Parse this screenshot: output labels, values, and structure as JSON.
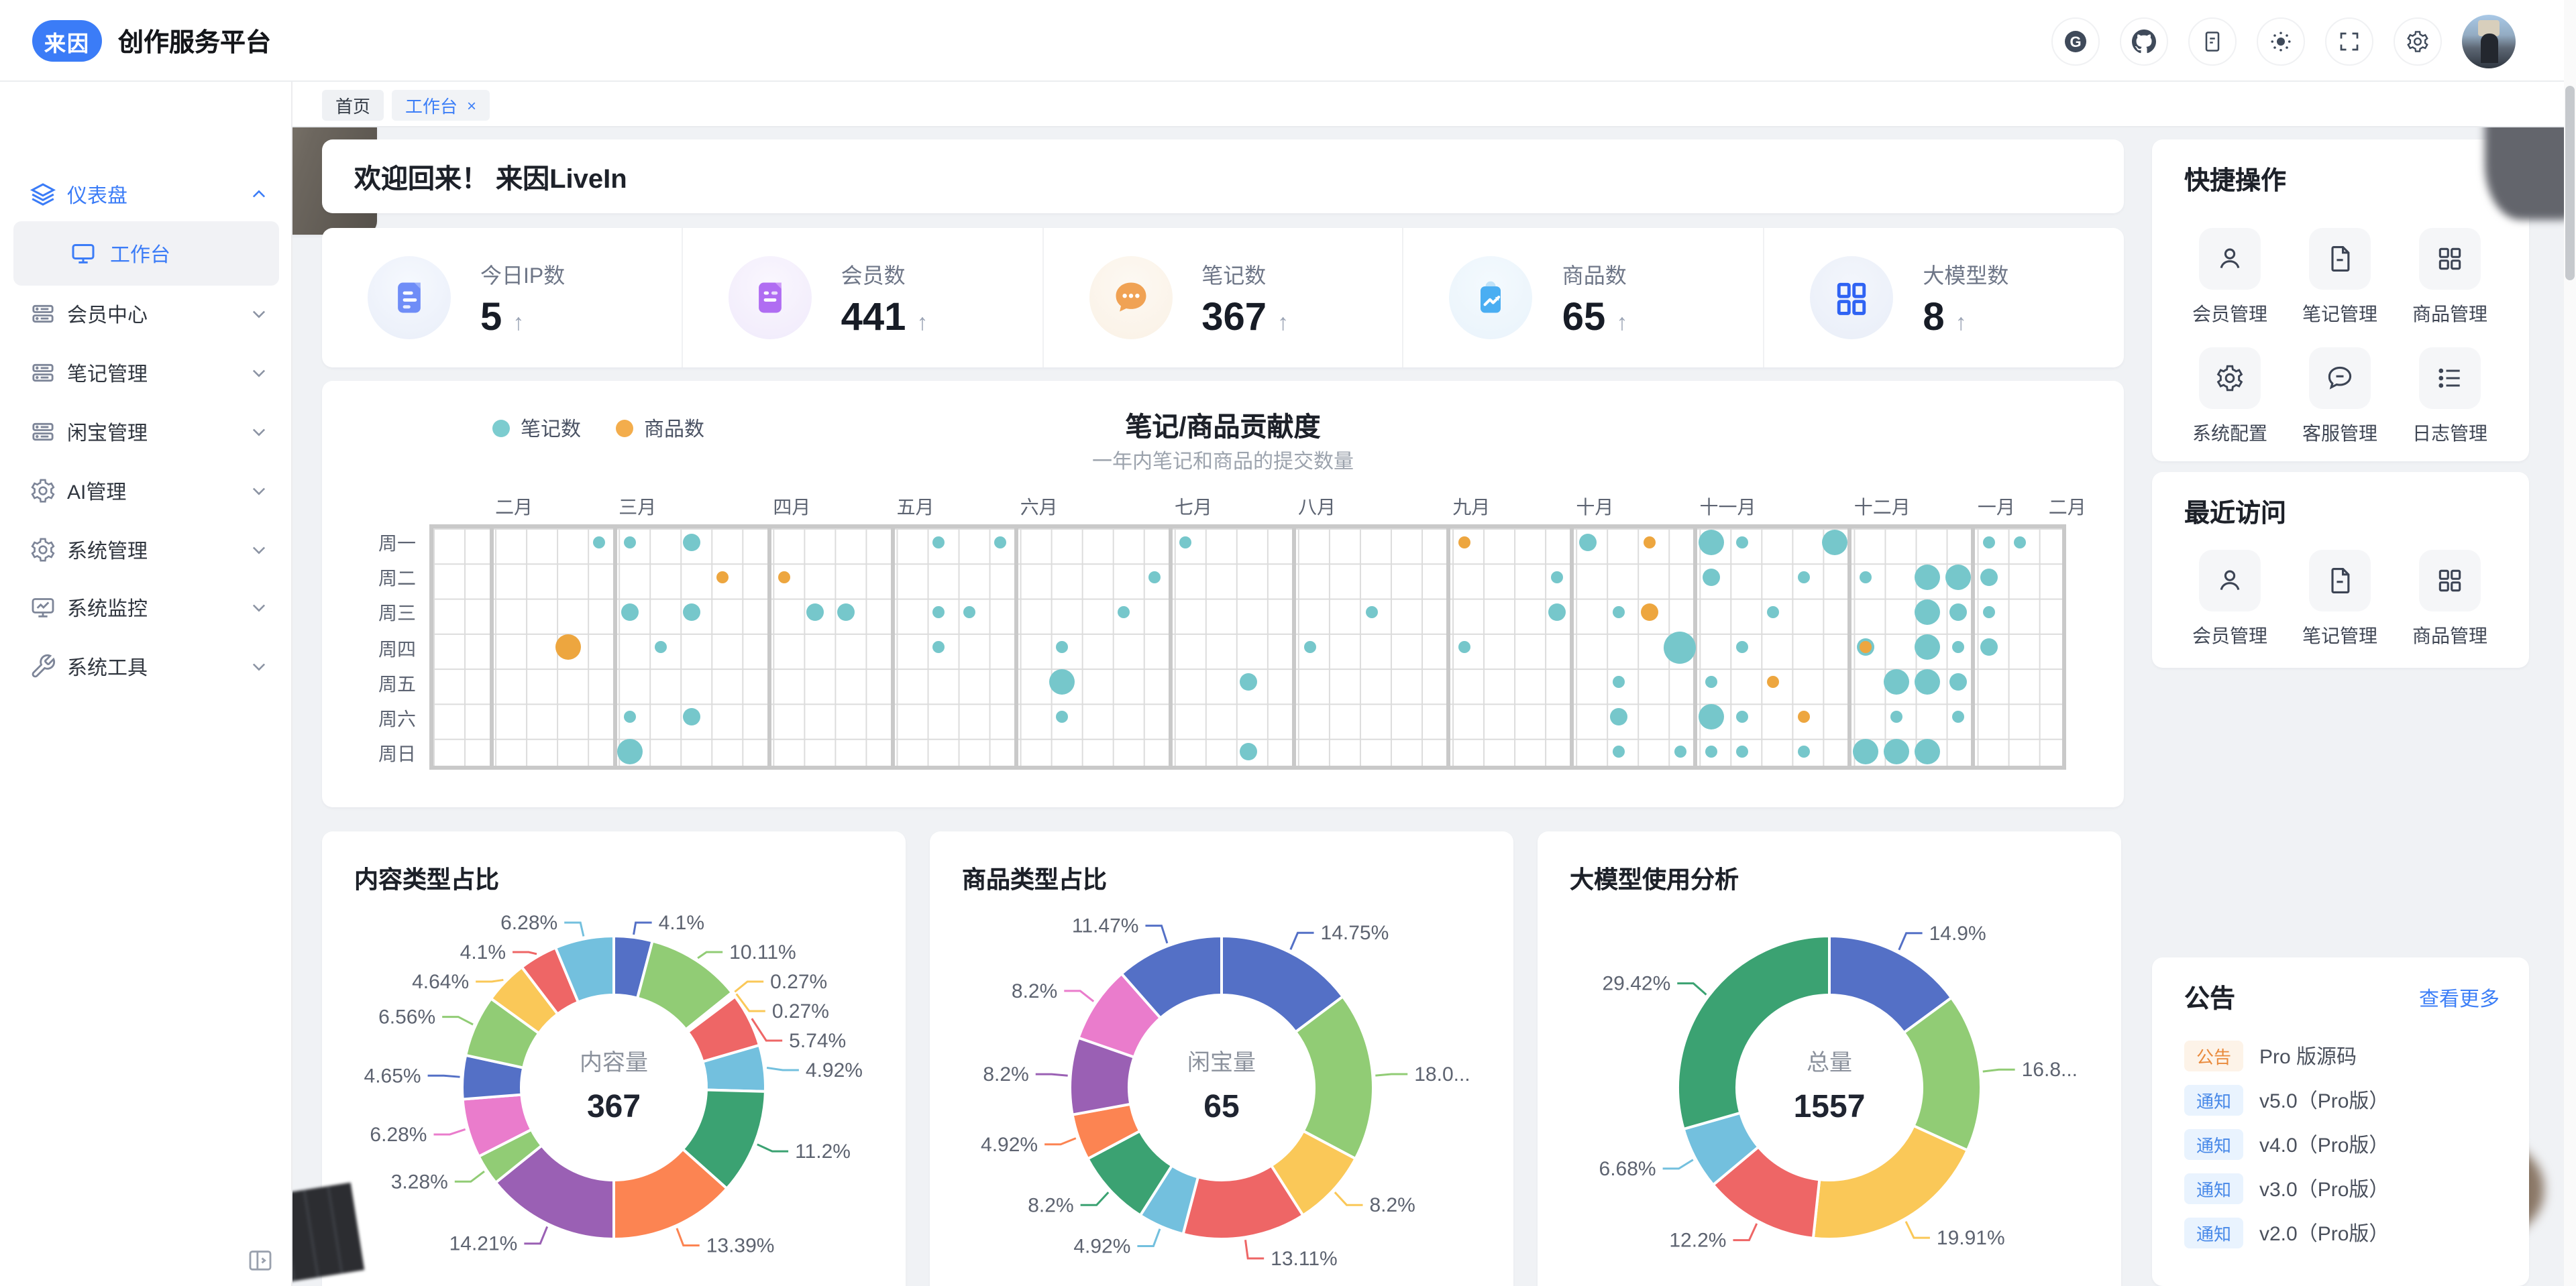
{
  "page": {
    "background": "#f0f2f5",
    "accent": "#3b7cf7"
  },
  "header": {
    "logo_text": "来因",
    "title": "创作服务平台",
    "icons": [
      "gitee-icon",
      "github-icon",
      "document-icon",
      "theme-sun-icon",
      "fullscreen-icon",
      "settings-gear-icon",
      "avatar"
    ]
  },
  "sidebar": {
    "items": [
      {
        "label": "仪表盘",
        "icon": "layers-icon",
        "expanded": true
      },
      {
        "label": "工作台",
        "icon": "monitor-icon",
        "active": true
      },
      {
        "label": "会员中心",
        "icon": "server-list-icon"
      },
      {
        "label": "笔记管理",
        "icon": "server-list-icon"
      },
      {
        "label": "闲宝管理",
        "icon": "server-list-icon"
      },
      {
        "label": "AI管理",
        "icon": "gear-icon"
      },
      {
        "label": "系统管理",
        "icon": "gear-icon"
      },
      {
        "label": "系统监控",
        "icon": "monitor-chart-icon"
      },
      {
        "label": "系统工具",
        "icon": "wrench-icon"
      }
    ]
  },
  "tabs": [
    {
      "label": "首页",
      "active": false
    },
    {
      "label": "工作台",
      "active": true,
      "close": "×"
    }
  ],
  "welcome": {
    "title": "欢迎回来！ 来因LiveIn"
  },
  "stats": {
    "items": [
      {
        "label": "今日IP数",
        "value": "5",
        "trend": "↑",
        "icon": "ip-doc-icon"
      },
      {
        "label": "会员数",
        "value": "441",
        "trend": "↑",
        "icon": "member-file-icon"
      },
      {
        "label": "笔记数",
        "value": "367",
        "trend": "↑",
        "icon": "note-chat-icon"
      },
      {
        "label": "商品数",
        "value": "65",
        "trend": "↑",
        "icon": "product-trend-icon"
      },
      {
        "label": "大模型数",
        "value": "8",
        "trend": "↑",
        "icon": "model-grid-icon"
      }
    ]
  },
  "quick_ops": {
    "title": "快捷操作",
    "items": [
      {
        "label": "会员管理",
        "icon": "user-icon"
      },
      {
        "label": "笔记管理",
        "icon": "file-icon"
      },
      {
        "label": "商品管理",
        "icon": "grid-icon"
      },
      {
        "label": "系统配置",
        "icon": "gear-icon"
      },
      {
        "label": "客服管理",
        "icon": "chat-icon"
      },
      {
        "label": "日志管理",
        "icon": "list-icon"
      }
    ]
  },
  "recent": {
    "title": "最近访问",
    "items": [
      {
        "label": "会员管理",
        "icon": "user-icon"
      },
      {
        "label": "笔记管理",
        "icon": "file-icon"
      },
      {
        "label": "商品管理",
        "icon": "grid-icon"
      }
    ]
  },
  "notice": {
    "title": "公告",
    "more": "查看更多",
    "items": [
      {
        "tag": "公告",
        "type": "announcement",
        "text": "Pro 版源码"
      },
      {
        "tag": "通知",
        "type": "notice",
        "text": "v5.0（Pro版）"
      },
      {
        "tag": "通知",
        "type": "notice",
        "text": "v4.0（Pro版）"
      },
      {
        "tag": "通知",
        "type": "notice",
        "text": "v3.0（Pro版）"
      },
      {
        "tag": "通知",
        "type": "notice",
        "text": "v2.0（Pro版）"
      }
    ]
  },
  "chart_data": [
    {
      "type": "heatmap",
      "title": "笔记/商品贡献度",
      "subtitle": "一年内笔记和商品的提交数量",
      "legend": [
        {
          "name": "笔记数",
          "color": "#7ccccf"
        },
        {
          "name": "商品数",
          "color": "#f3ad4c"
        }
      ],
      "weekdays": [
        "周一",
        "周二",
        "周三",
        "周四",
        "周五",
        "周六",
        "周日"
      ],
      "months": [
        {
          "label": "二月",
          "week": 2
        },
        {
          "label": "三月",
          "week": 6
        },
        {
          "label": "四月",
          "week": 11
        },
        {
          "label": "五月",
          "week": 15
        },
        {
          "label": "六月",
          "week": 19
        },
        {
          "label": "七月",
          "week": 24
        },
        {
          "label": "八月",
          "week": 28
        },
        {
          "label": "九月",
          "week": 33
        },
        {
          "label": "十月",
          "week": 37
        },
        {
          "label": "十一月",
          "week": 41
        },
        {
          "label": "十二月",
          "week": 46
        },
        {
          "label": "一月",
          "week": 50
        },
        {
          "label": "二月",
          "week": 52.3
        }
      ],
      "month_boundaries": [
        2,
        6,
        11,
        15,
        19,
        24,
        28,
        33,
        37,
        41,
        46,
        50
      ],
      "dot_colors": {
        "n": "#76c7cb",
        "p": "#eda63f"
      },
      "dot_sizes": {
        "s": 4.5,
        "m": 6.5,
        "l": 9.5,
        "x": 12
      },
      "dots": [
        [
          5,
          0,
          "n",
          "s"
        ],
        [
          6,
          0,
          "n",
          "s"
        ],
        [
          8,
          0,
          "n",
          "m"
        ],
        [
          16,
          0,
          "n",
          "s"
        ],
        [
          18,
          0,
          "n",
          "s"
        ],
        [
          24,
          0,
          "n",
          "s"
        ],
        [
          33,
          0,
          "p",
          "s"
        ],
        [
          37,
          0,
          "n",
          "m"
        ],
        [
          39,
          0,
          "p",
          "s"
        ],
        [
          41,
          0,
          "n",
          "l"
        ],
        [
          42,
          0,
          "n",
          "s"
        ],
        [
          45,
          0,
          "n",
          "l"
        ],
        [
          50,
          0,
          "n",
          "s"
        ],
        [
          51,
          0,
          "n",
          "s"
        ],
        [
          9,
          1,
          "p",
          "s"
        ],
        [
          11,
          1,
          "p",
          "s"
        ],
        [
          23,
          1,
          "n",
          "s"
        ],
        [
          36,
          1,
          "n",
          "s"
        ],
        [
          41,
          1,
          "n",
          "m"
        ],
        [
          44,
          1,
          "n",
          "s"
        ],
        [
          46,
          1,
          "n",
          "s"
        ],
        [
          48,
          1,
          "n",
          "l"
        ],
        [
          49,
          1,
          "n",
          "l"
        ],
        [
          50,
          1,
          "n",
          "m"
        ],
        [
          6,
          2,
          "n",
          "m"
        ],
        [
          8,
          2,
          "n",
          "m"
        ],
        [
          12,
          2,
          "n",
          "m"
        ],
        [
          13,
          2,
          "n",
          "m"
        ],
        [
          16,
          2,
          "n",
          "s"
        ],
        [
          17,
          2,
          "n",
          "s"
        ],
        [
          22,
          2,
          "n",
          "s"
        ],
        [
          30,
          2,
          "n",
          "s"
        ],
        [
          36,
          2,
          "n",
          "m"
        ],
        [
          38,
          2,
          "n",
          "s"
        ],
        [
          39,
          2,
          "p",
          "m"
        ],
        [
          43,
          2,
          "n",
          "s"
        ],
        [
          48,
          2,
          "n",
          "l"
        ],
        [
          49,
          2,
          "n",
          "m"
        ],
        [
          50,
          2,
          "n",
          "s"
        ],
        [
          4,
          3,
          "p",
          "l"
        ],
        [
          7,
          3,
          "n",
          "s"
        ],
        [
          16,
          3,
          "n",
          "s"
        ],
        [
          20,
          3,
          "n",
          "s"
        ],
        [
          28,
          3,
          "n",
          "s"
        ],
        [
          33,
          3,
          "n",
          "s"
        ],
        [
          40,
          3,
          "n",
          "x"
        ],
        [
          42,
          3,
          "n",
          "s"
        ],
        [
          46,
          3,
          "n",
          "m"
        ],
        [
          46,
          3,
          "p",
          "s"
        ],
        [
          48,
          3,
          "n",
          "l"
        ],
        [
          49,
          3,
          "n",
          "s"
        ],
        [
          50,
          3,
          "n",
          "m"
        ],
        [
          20,
          4,
          "n",
          "l"
        ],
        [
          26,
          4,
          "n",
          "m"
        ],
        [
          38,
          4,
          "n",
          "s"
        ],
        [
          41,
          4,
          "n",
          "s"
        ],
        [
          43,
          4,
          "p",
          "s"
        ],
        [
          47,
          4,
          "n",
          "l"
        ],
        [
          48,
          4,
          "n",
          "l"
        ],
        [
          49,
          4,
          "n",
          "m"
        ],
        [
          6,
          5,
          "n",
          "s"
        ],
        [
          8,
          5,
          "n",
          "m"
        ],
        [
          20,
          5,
          "n",
          "s"
        ],
        [
          38,
          5,
          "n",
          "m"
        ],
        [
          41,
          5,
          "n",
          "l"
        ],
        [
          42,
          5,
          "n",
          "s"
        ],
        [
          44,
          5,
          "p",
          "s"
        ],
        [
          47,
          5,
          "n",
          "s"
        ],
        [
          49,
          5,
          "n",
          "s"
        ],
        [
          6,
          6,
          "n",
          "l"
        ],
        [
          26,
          6,
          "n",
          "m"
        ],
        [
          38,
          6,
          "n",
          "s"
        ],
        [
          40,
          6,
          "n",
          "s"
        ],
        [
          41,
          6,
          "n",
          "s"
        ],
        [
          42,
          6,
          "n",
          "s"
        ],
        [
          44,
          6,
          "n",
          "s"
        ],
        [
          46,
          6,
          "n",
          "l"
        ],
        [
          47,
          6,
          "n",
          "l"
        ],
        [
          48,
          6,
          "n",
          "l"
        ]
      ]
    },
    {
      "type": "pie",
      "title": "内容类型占比",
      "center_label": "内容量",
      "center_value": "367",
      "labels": [
        "4.1%",
        "10.11%",
        "0.27%",
        "0.27%",
        "5.74%",
        "4.92%",
        "11.2%",
        "13.39%",
        "14.21%",
        "3.28%",
        "6.28%",
        "4.65%",
        "6.56%",
        "4.64%",
        "4.1%",
        "6.28%"
      ],
      "values": [
        4.1,
        10.11,
        0.27,
        0.27,
        5.74,
        4.92,
        11.2,
        13.39,
        14.21,
        3.28,
        6.28,
        4.65,
        6.56,
        4.64,
        4.1,
        6.28
      ],
      "colors": [
        "#5470c6",
        "#91cc75",
        "#fac858",
        "#fac858",
        "#ee6666",
        "#73c0de",
        "#3ba272",
        "#fc8452",
        "#9a60b4",
        "#91cc75",
        "#ea7ccc",
        "#5470c6",
        "#91cc75",
        "#fac858",
        "#ee6666",
        "#73c0de"
      ]
    },
    {
      "type": "pie",
      "title": "商品类型占比",
      "center_label": "闲宝量",
      "center_value": "65",
      "labels": [
        "14.75%",
        "18.0...",
        "8.2%",
        "13.11%",
        "4.92%",
        "8.2%",
        "4.92%",
        "8.2%",
        "8.2%",
        "11.47%"
      ],
      "values": [
        14.75,
        18.03,
        8.2,
        13.11,
        4.92,
        8.2,
        4.92,
        8.2,
        8.2,
        11.47
      ],
      "colors": [
        "#5470c6",
        "#91cc75",
        "#fac858",
        "#ee6666",
        "#73c0de",
        "#3ba272",
        "#fc8452",
        "#9a60b4",
        "#ea7ccc",
        "#5470c6"
      ]
    },
    {
      "type": "pie",
      "title": "大模型使用分析",
      "center_label": "总量",
      "center_value": "1557",
      "labels": [
        "14.9%",
        "16.8...",
        "19.91%",
        "12.2%",
        "6.68%",
        "29.42%"
      ],
      "values": [
        14.9,
        16.89,
        19.91,
        12.2,
        6.68,
        29.42
      ],
      "colors": [
        "#5470c6",
        "#91cc75",
        "#fac858",
        "#ee6666",
        "#73c0de",
        "#3ba272"
      ]
    }
  ]
}
